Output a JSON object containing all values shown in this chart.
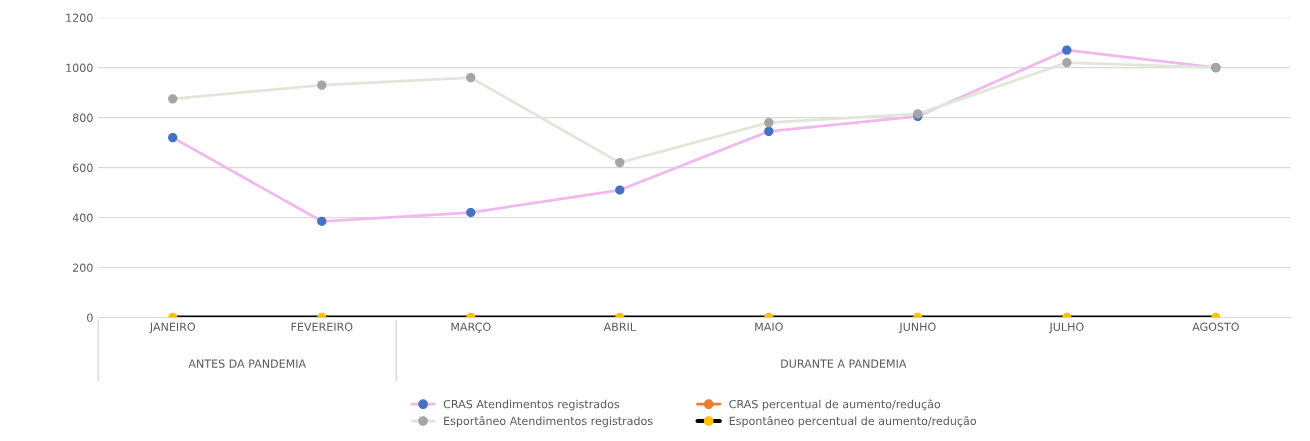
{
  "chart_data": {
    "type": "line",
    "categories": [
      "JANEIRO",
      "FEVEREIRO",
      "MARÇO",
      "ABRIL",
      "MAIO",
      "JUNHO",
      "JULHO",
      "AGOSTO"
    ],
    "series": [
      {
        "name": "CRAS Atendimentos registrados",
        "color": "#f0b8ee",
        "colors": [
          "#4472c4",
          "#4472c4",
          "#4472c4",
          "#4472c4",
          "#4472c4",
          "#4472c4",
          "#4472c4",
          "#4472c4"
        ],
        "values": [
          720,
          385,
          420,
          510,
          745,
          805,
          1070,
          1000
        ]
      },
      {
        "name": "Esportâneo Atendimentos registrados",
        "color": "#dfe8d8",
        "colors": [
          "#a5a5a5",
          "#a5a5a5",
          "#a5a5a5",
          "#a5a5a5",
          "#a5a5a5",
          "#a5a5a5",
          "#a5a5a5",
          "#a5a5a5"
        ],
        "values": [
          875,
          930,
          960,
          620,
          780,
          815,
          1020,
          1000
        ]
      },
      {
        "name": "CRAS percentual de aumento/redução",
        "color": "#ed7d31",
        "values": [
          null,
          null,
          null,
          null,
          null,
          null,
          null,
          null
        ]
      },
      {
        "name": "Espontâneo percentual de aumento/redução",
        "color": "#000000",
        "colors": [
          "#ffc000",
          "#ffc000",
          "#ffc000",
          "#ffc000",
          "#ffc000",
          "#ffc000",
          "#ffc000",
          "#ffc000"
        ],
        "values": [
          0,
          0,
          0,
          0,
          0,
          0,
          0,
          0
        ]
      }
    ],
    "annotations": [
      "ANTES DA PANDEMIA",
      "DURANTE A PANDEMIA"
    ],
    "ylim": [
      0,
      1200
    ],
    "yticks": [
      0,
      200,
      400,
      600,
      800,
      1000,
      1200
    ],
    "grid": "y",
    "legend": "bottom",
    "marker": "circle",
    "line_style": "solid"
  }
}
